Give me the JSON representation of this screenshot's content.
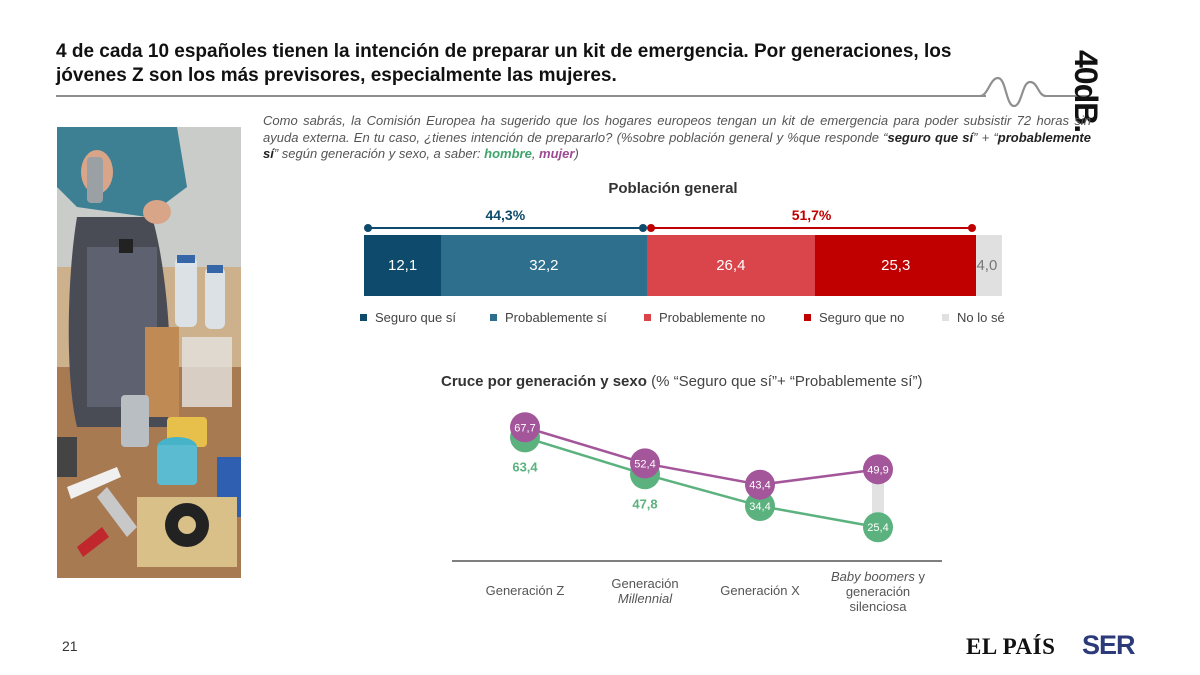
{
  "title": "4 de cada 10 españoles tienen la intención de preparar un kit de emergencia. Por generaciones, los jóvenes Z son los más previsores, especialmente las mujeres.",
  "brand_logo": "40dB.",
  "page_number": "21",
  "footer": {
    "media1": "EL PAÍS",
    "media2": "SER"
  },
  "question": {
    "part1": "Como sabrás, la Comisión Europea ha sugerido que los hogares europeos tengan un kit de emergencia para poder subsistir 72 horas sin ayuda externa. En tu caso, ¿tienes intención de prepararlo? (%sobre población general y %que responde “",
    "bold1": "seguro que sí",
    "part2": "” + “",
    "bold2": "probablemente sí",
    "part3": "” según generación y sexo, a saber: ",
    "men": "hombre",
    "comma": ", ",
    "women": "mujer",
    "close": ")"
  },
  "colors": {
    "seguro_si": "#0d4a6b",
    "probablemente_si": "#2e6f8e",
    "probablemente_no": "#d9454a",
    "seguro_no": "#c00000",
    "no_lo_se": "#e0e0e0",
    "hombre": "#5cb27e",
    "mujer": "#a4569b"
  },
  "chart_data": [
    {
      "type": "bar",
      "orientation": "horizontal-stacked",
      "title": "Población general",
      "categories": [
        "Seguro que sí",
        "Probablemente sí",
        "Probablemente no",
        "Seguro que no",
        "No lo sé"
      ],
      "values": [
        12.1,
        32.2,
        26.4,
        25.3,
        4.0
      ],
      "value_labels": [
        "12,1",
        "32,2",
        "26,4",
        "25,3",
        "4,0"
      ],
      "totals": [
        {
          "label": "44,3%",
          "value": 44.3,
          "span": [
            "Seguro que sí",
            "Probablemente sí"
          ]
        },
        {
          "label": "51,7%",
          "value": 51.7,
          "span": [
            "Probablemente no",
            "Seguro que no"
          ]
        }
      ],
      "legend_position": "bottom"
    },
    {
      "type": "line",
      "title": "Cruce por generación y sexo",
      "subtitle": "(% “Seguro que sí”+ “Probablemente sí”)",
      "categories": [
        "Generación Z",
        "Generación Millennial",
        "Generación X",
        "Baby boomers y generación silenciosa"
      ],
      "category_labels": [
        {
          "a": "Generación Z",
          "b": "",
          "c": ""
        },
        {
          "a": "Generación",
          "b": "Millennial",
          "c": ""
        },
        {
          "a": "Generación X",
          "b": "",
          "c": ""
        },
        {
          "a": "Baby boomers",
          "b": " y",
          "c": "generación silenciosa"
        }
      ],
      "series": [
        {
          "name": "hombre",
          "values": [
            63.4,
            47.8,
            34.4,
            25.4
          ],
          "labels": [
            "63,4",
            "47,8",
            "34,4",
            "25,4"
          ]
        },
        {
          "name": "mujer",
          "values": [
            67.7,
            52.4,
            43.4,
            49.9
          ],
          "labels": [
            "67,7",
            "52,4",
            "43,4",
            "49,9"
          ]
        }
      ],
      "ylim": [
        20,
        75
      ]
    }
  ]
}
